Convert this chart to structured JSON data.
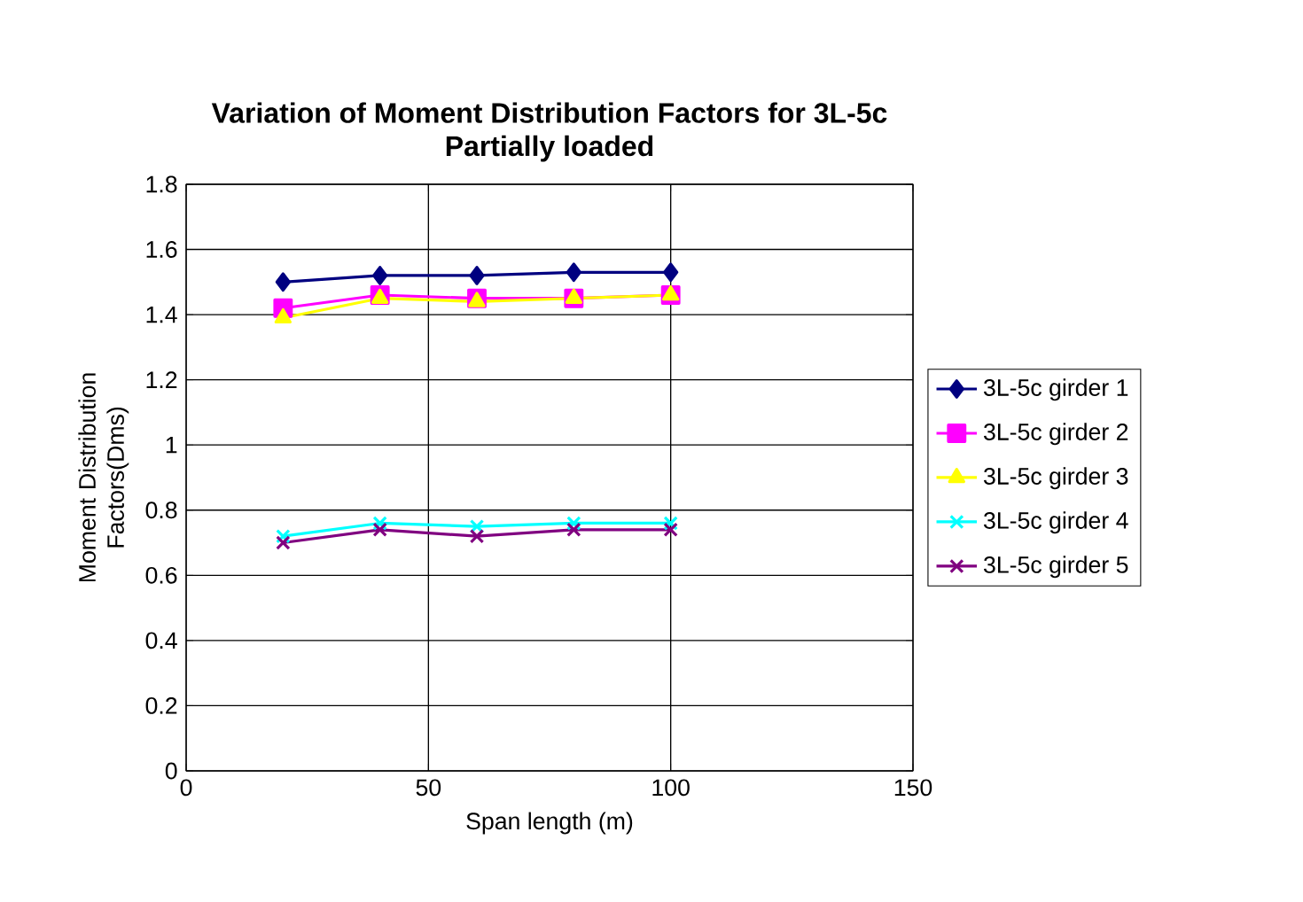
{
  "chart_data": {
    "type": "line",
    "title": "Variation of Moment Distribution Factors for 3L-5c",
    "subtitle": "Partially loaded",
    "xlabel": "Span length (m)",
    "ylabel": "Moment Distribution Factors(Dms)",
    "x": [
      20,
      40,
      60,
      80,
      100
    ],
    "series": [
      {
        "name": "3L-5c girder 1",
        "color": "#000080",
        "marker": "diamond",
        "values": [
          1.5,
          1.52,
          1.52,
          1.53,
          1.53
        ]
      },
      {
        "name": "3L-5c girder 2",
        "color": "#ff00ff",
        "marker": "square",
        "values": [
          1.42,
          1.46,
          1.45,
          1.45,
          1.46
        ]
      },
      {
        "name": "3L-5c girder 3",
        "color": "#ffff00",
        "marker": "triangle",
        "values": [
          1.39,
          1.45,
          1.44,
          1.45,
          1.46
        ]
      },
      {
        "name": "3L-5c girder 4",
        "color": "#00ffff",
        "marker": "cross",
        "values": [
          0.72,
          0.76,
          0.75,
          0.76,
          0.76
        ]
      },
      {
        "name": "3L-5c girder 5",
        "color": "#800080",
        "marker": "cross",
        "values": [
          0.7,
          0.74,
          0.72,
          0.74,
          0.74
        ]
      }
    ],
    "xlim": [
      0,
      150
    ],
    "xticks": [
      0,
      50,
      100,
      150
    ],
    "ylim": [
      0,
      1.8
    ],
    "yticks": [
      0,
      0.2,
      0.4,
      0.6,
      0.8,
      1,
      1.2,
      1.4,
      1.6,
      1.8
    ],
    "grid": true,
    "legend": "right",
    "line_style": "solid"
  }
}
